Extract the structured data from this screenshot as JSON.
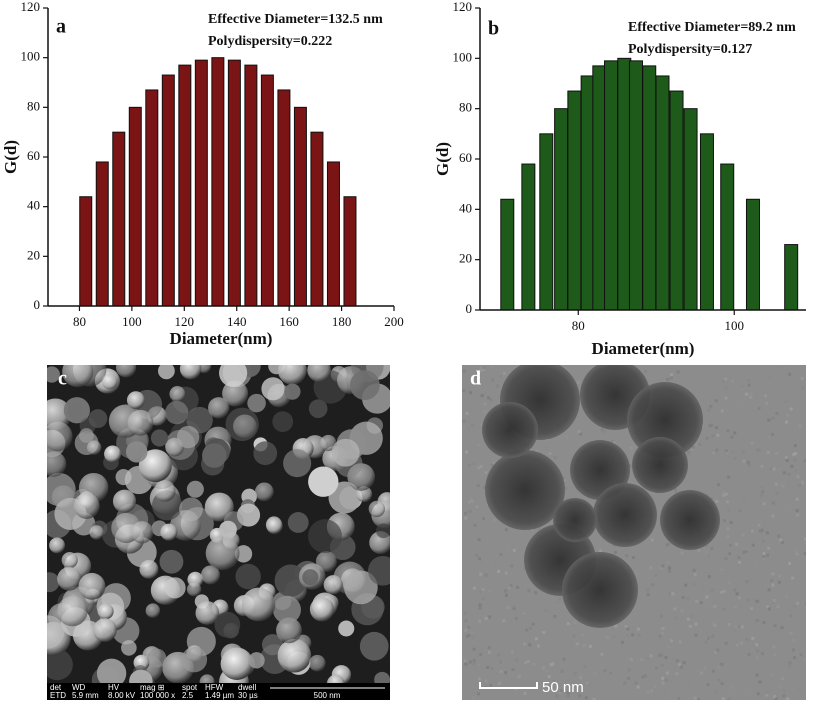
{
  "chart_data": [
    {
      "type": "bar",
      "panel": "a",
      "annotations": [
        "Effective Diameter=132.5 nm",
        "Polydispersity=0.222"
      ],
      "x_label": "Diameter(nm)",
      "y_label": "G(d)",
      "color": "#7b1414",
      "x": [
        82.4,
        88.7,
        95.0,
        101.3,
        107.6,
        113.9,
        120.2,
        126.5,
        132.8,
        139.1,
        145.4,
        151.7,
        158.0,
        164.3,
        170.6,
        176.9,
        183.2
      ],
      "values": [
        44,
        58,
        70,
        80,
        87,
        93,
        97,
        99,
        100,
        99,
        97,
        93,
        87,
        80,
        70,
        58,
        44
      ],
      "xlim": [
        68,
        200
      ],
      "xticks": [
        80,
        100,
        120,
        140,
        160,
        180,
        200
      ],
      "ylim": [
        0,
        120
      ],
      "yticks": [
        0,
        20,
        40,
        60,
        80,
        100,
        120
      ]
    },
    {
      "type": "bar",
      "panel": "b",
      "annotations": [
        "Effective Diameter=89.2 nm",
        "Polydispersity=0.127"
      ],
      "x_label": "Diameter(nm)",
      "y_label": "G(d)",
      "color": "#1e5a1a",
      "x": [
        70.9,
        73.6,
        75.9,
        77.8,
        79.5,
        81.2,
        82.7,
        84.2,
        85.9,
        87.4,
        89.1,
        90.8,
        92.6,
        94.4,
        96.5,
        99.1,
        102.4,
        107.3
      ],
      "values": [
        44,
        58,
        70,
        80,
        87,
        93,
        97,
        99,
        100,
        99,
        97,
        93,
        87,
        80,
        70,
        58,
        44,
        26
      ],
      "xlim": [
        67.4,
        109.2
      ],
      "xticks": [
        80,
        100
      ],
      "ylim": [
        0,
        120
      ],
      "yticks": [
        0,
        20,
        40,
        60,
        80,
        100,
        120
      ]
    }
  ],
  "images": [
    {
      "label": "c",
      "info_headers": [
        "det",
        "WD",
        "HV",
        "mag ⊞",
        "spot",
        "HFW",
        "dwell"
      ],
      "info_values": [
        "ETD",
        "5.9 mm",
        "8.00 kV",
        "100 000 x",
        "2.5",
        "1.49 µm",
        "30 µs"
      ],
      "scale_bar": "500 nm"
    },
    {
      "label": "d",
      "scale_bar": "50 nm"
    }
  ]
}
